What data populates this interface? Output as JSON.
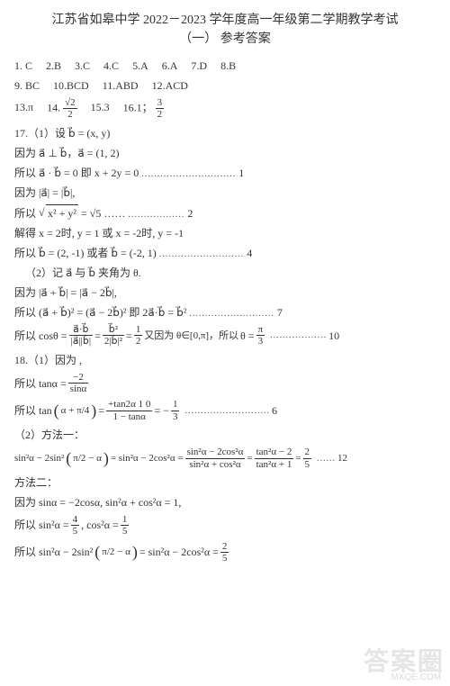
{
  "title": {
    "line1": "江苏省如皋中学 2022－2023 学年度高一年级第二学期教学考试",
    "line2": "（一）  参考答案"
  },
  "mc": {
    "r1": [
      {
        "n": "1.",
        "a": "C"
      },
      {
        "n": "2.",
        "a": "B"
      },
      {
        "n": "3.",
        "a": "C"
      },
      {
        "n": "4.",
        "a": "C"
      },
      {
        "n": "5.",
        "a": "A"
      },
      {
        "n": "6.",
        "a": "A"
      },
      {
        "n": "7.",
        "a": "D"
      },
      {
        "n": "8.",
        "a": "B"
      }
    ],
    "r2": [
      {
        "n": "9.",
        "a": "BC"
      },
      {
        "n": "10.",
        "a": "BCD"
      },
      {
        "n": "11.",
        "a": "ABD"
      },
      {
        "n": "12.",
        "a": "ACD"
      }
    ]
  },
  "fill": {
    "q13": {
      "n": "13.",
      "v": "π"
    },
    "q14": {
      "n": "14.",
      "num": "√2",
      "den": "2"
    },
    "q15": {
      "n": "15.",
      "v": "3"
    },
    "q16": {
      "n": "16.",
      "v1": "1；",
      "num": "3",
      "den": "2"
    }
  },
  "q17": {
    "head": "17.（1）设 b⃗ = (x, y)",
    "l1": "因为 a⃗ ⊥ b⃗，a⃗ = (1, 2)",
    "l2": "所以 a⃗ · b⃗ = 0 即 x + 2y = 0",
    "l3": "因为 |a⃗| = |b⃗|,",
    "l4_pre": "所以 ",
    "l4_rad": "x² + y²",
    "l4_eq": " = √5 ……",
    "l5": "解得 x = 2时, y = 1 或 x = -2时, y = -1",
    "l6": "所以 b⃗ = (2, -1) 或者 b⃗ = (-2, 1)",
    "p2": "（2）记 a⃗ 与 b⃗ 夹角为 θ.",
    "l7": "因为 |a⃗ + b⃗| = |a⃗ − 2b⃗|,",
    "l8": "所以 (a⃗ + b⃗)² = (a⃗ − 2b⃗)² 即 2a⃗·b⃗ = b⃗²",
    "l9_pre": "所以 cosθ = ",
    "l9_f1n": "a⃗·b⃗",
    "l9_f1d": "|a⃗||b⃗|",
    "l9_f2n": "b⃗²",
    "l9_f2d": "2|b⃗|²",
    "l9_f3n": "1",
    "l9_f3d": "2",
    "l9_mid": "  又因为 θ∈[0,π]，所以 ",
    "l9_rn": "π",
    "l9_rd": "3",
    "score1": "1",
    "score2": "2",
    "score4": "4",
    "score7": "7",
    "score10": "10"
  },
  "q18": {
    "head": "18.（1）因为                 ,",
    "l1_pre": "所以 tanα = ",
    "l1_num": "−2",
    "l1_den": "sinα",
    "l2_pre": "所以 tan",
    "l2_arg": "α + π/4",
    "l2_eq": " = ",
    "l2_f1n": "+tan2α 1 0",
    "l2_f1d": "1 − tanα",
    "l2_f2n": "1",
    "l2_f2d": "3",
    "p2": "（2）方法一：",
    "l3_lhs": "sin²α − 2sin²",
    "l3_arg": "π/2 − α",
    "l3_mid1": " = sin²α − 2cos²α = ",
    "l3_f1n": "sin²α − 2cos²α",
    "l3_f1d": "sin²α + cos²α",
    "l3_f2n": "tan²α − 2",
    "l3_f2d": "tan²α + 1",
    "l3_f3n": "2",
    "l3_f3d": "5",
    "m2": "方法二：",
    "l4": "因为 sinα = −2cosα, sin²α + cos²α = 1,",
    "l5_pre": "所以 sin²α = ",
    "l5_f1n": "4",
    "l5_f1d": "5",
    "l5_mid": ", cos²α = ",
    "l5_f2n": "1",
    "l5_f2d": "5",
    "l6_lhs": "所以 sin²α − 2sin²",
    "l6_arg": "π/2 − α",
    "l6_eq": " = sin²α − 2cos²α = ",
    "l6_fn": "2",
    "l6_fd": "5",
    "score6": "6",
    "score12": "12"
  },
  "watermark": {
    "big": "答案圈",
    "small": "MXQE.COM"
  }
}
